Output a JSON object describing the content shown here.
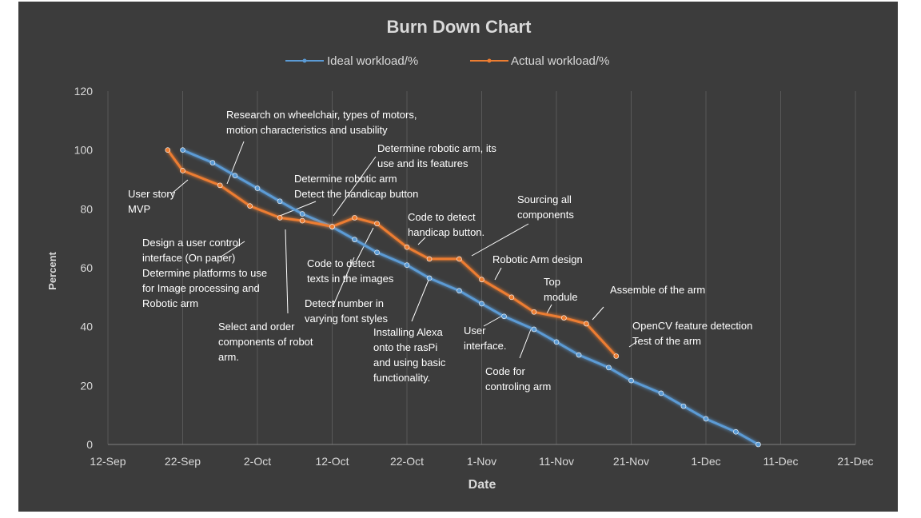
{
  "chart_data": {
    "type": "line",
    "title": "Burn Down Chart",
    "xlabel": "Date",
    "ylabel": "Percent",
    "ylim": [
      0,
      120
    ],
    "yticks": [
      0,
      20,
      40,
      60,
      80,
      100,
      120
    ],
    "xlim": [
      "2015-09-12",
      "2015-12-21"
    ],
    "xticks": [
      {
        "date": "2015-09-12",
        "label": "12-Sep"
      },
      {
        "date": "2015-09-22",
        "label": "22-Sep"
      },
      {
        "date": "2015-10-02",
        "label": "2-Oct"
      },
      {
        "date": "2015-10-12",
        "label": "12-Oct"
      },
      {
        "date": "2015-10-22",
        "label": "22-Oct"
      },
      {
        "date": "2015-11-01",
        "label": "1-Nov"
      },
      {
        "date": "2015-11-11",
        "label": "11-Nov"
      },
      {
        "date": "2015-11-21",
        "label": "21-Nov"
      },
      {
        "date": "2015-12-01",
        "label": "1-Dec"
      },
      {
        "date": "2015-12-11",
        "label": "11-Dec"
      },
      {
        "date": "2015-12-21",
        "label": "21-Dec"
      }
    ],
    "legend_position": "top",
    "grid": "vertical",
    "series": [
      {
        "name": "Ideal workload/%",
        "color": "#5b9bd5",
        "points": [
          {
            "x": "2015-09-22",
            "y": 100
          },
          {
            "x": "2015-09-26",
            "y": 95.7
          },
          {
            "x": "2015-09-29",
            "y": 91.3
          },
          {
            "x": "2015-10-02",
            "y": 87
          },
          {
            "x": "2015-10-05",
            "y": 82.6
          },
          {
            "x": "2015-10-08",
            "y": 78.3
          },
          {
            "x": "2015-10-12",
            "y": 73.9
          },
          {
            "x": "2015-10-15",
            "y": 69.6
          },
          {
            "x": "2015-10-18",
            "y": 65.2
          },
          {
            "x": "2015-10-22",
            "y": 60.9
          },
          {
            "x": "2015-10-25",
            "y": 56.5
          },
          {
            "x": "2015-10-29",
            "y": 52.2
          },
          {
            "x": "2015-11-01",
            "y": 47.8
          },
          {
            "x": "2015-11-04",
            "y": 43.5
          },
          {
            "x": "2015-11-08",
            "y": 39.1
          },
          {
            "x": "2015-11-11",
            "y": 34.8
          },
          {
            "x": "2015-11-14",
            "y": 30.4
          },
          {
            "x": "2015-11-18",
            "y": 26.1
          },
          {
            "x": "2015-11-21",
            "y": 21.7
          },
          {
            "x": "2015-11-25",
            "y": 17.4
          },
          {
            "x": "2015-11-28",
            "y": 13
          },
          {
            "x": "2015-12-01",
            "y": 8.7
          },
          {
            "x": "2015-12-05",
            "y": 4.3
          },
          {
            "x": "2015-12-08",
            "y": 0
          }
        ]
      },
      {
        "name": "Actual workload/%",
        "color": "#ed7d31",
        "points": [
          {
            "x": "2015-09-20",
            "y": 100
          },
          {
            "x": "2015-09-22",
            "y": 93
          },
          {
            "x": "2015-09-27",
            "y": 88
          },
          {
            "x": "2015-10-01",
            "y": 81
          },
          {
            "x": "2015-10-05",
            "y": 77
          },
          {
            "x": "2015-10-08",
            "y": 76
          },
          {
            "x": "2015-10-12",
            "y": 74
          },
          {
            "x": "2015-10-15",
            "y": 77
          },
          {
            "x": "2015-10-18",
            "y": 75
          },
          {
            "x": "2015-10-22",
            "y": 67
          },
          {
            "x": "2015-10-25",
            "y": 63
          },
          {
            "x": "2015-10-29",
            "y": 63
          },
          {
            "x": "2015-11-01",
            "y": 56
          },
          {
            "x": "2015-11-05",
            "y": 50
          },
          {
            "x": "2015-11-08",
            "y": 45
          },
          {
            "x": "2015-11-12",
            "y": 43
          },
          {
            "x": "2015-11-15",
            "y": 41
          },
          {
            "x": "2015-11-19",
            "y": 30
          }
        ]
      }
    ],
    "annotations": [
      {
        "lines": [
          "Research on wheelchair, types of motors,",
          "motion characteristics and usability"
        ]
      },
      {
        "lines": [
          "User story",
          "MVP"
        ]
      },
      {
        "lines": [
          "Determine robotic arm, its",
          "use and its features"
        ]
      },
      {
        "lines": [
          "Determine robotic arm",
          "Detect the handicap button"
        ]
      },
      {
        "lines": [
          "Design a user control",
          "interface (On paper)",
          "Determine platforms to use",
          "for Image processing and",
          "Robotic arm"
        ]
      },
      {
        "lines": [
          "Select and order",
          "components of  robot",
          "arm."
        ]
      },
      {
        "lines": [
          "Code to detect",
          "texts in the images"
        ]
      },
      {
        "lines": [
          "Detect number in",
          "varying font styles"
        ]
      },
      {
        "lines": [
          "Code to detect",
          "handicap button."
        ]
      },
      {
        "lines": [
          "Installing Alexa",
          "onto the rasPi",
          "and using basic",
          "functionality."
        ]
      },
      {
        "lines": [
          "Sourcing all",
          "components"
        ]
      },
      {
        "lines": [
          "Robotic Arm design"
        ]
      },
      {
        "lines": [
          "User",
          "interface."
        ]
      },
      {
        "lines": [
          "Top",
          "module"
        ]
      },
      {
        "lines": [
          "Code for",
          "controling arm"
        ]
      },
      {
        "lines": [
          "Assemble of the arm"
        ]
      },
      {
        "lines": [
          "OpenCV feature detection",
          "Test of the arm"
        ]
      }
    ]
  }
}
